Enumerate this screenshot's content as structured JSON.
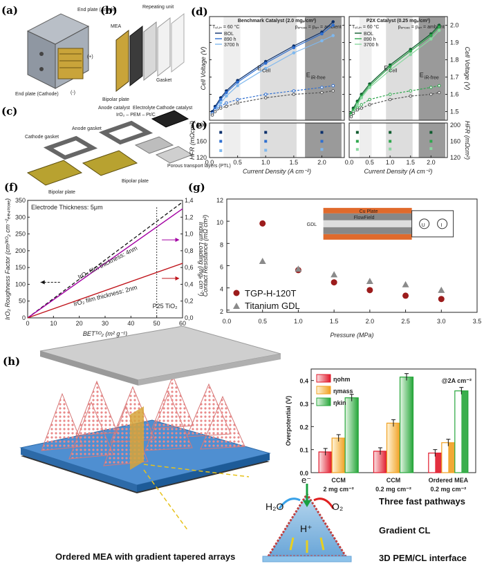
{
  "panels": {
    "a": "(a)",
    "b": "(b)",
    "c": "(c)",
    "d": "(d)",
    "e": "(e)",
    "f": "(f)",
    "g": "(g)",
    "h": "(h)"
  },
  "panel_a": {
    "end_plate_anode": "End plate (Anode)",
    "end_plate_cathode": "End plate (Cathode)",
    "plus": "(+)",
    "minus": "(-)"
  },
  "panel_b": {
    "repeating_unit": "Repeating unit",
    "mea": "MEA",
    "gasket": "Gasket",
    "bipolar_plate": "Bipolar plate"
  },
  "panel_c": {
    "anode_catalyst": "Anode catalyst",
    "electrolyte": "Electrolyte",
    "cathode_catalyst": "Cathode catalyst",
    "stack_formula": "IrO₂ – PEM – Pt/C",
    "anode_gasket": "Anode gasket",
    "cathode_gasket": "Cathode gasket",
    "ptl": "Porous transport layers (PTL)",
    "bipolar_plate_left": "Bipolar plate",
    "bipolar_plate_right": "Bipolar plate"
  },
  "panel_h": {
    "caption": "Ordered MEA with gradient tapered arrays",
    "electron": "e⁻",
    "water": "H₂O",
    "oxygen": "O₂",
    "proton": "H⁺",
    "pathways": "Three fast pathways",
    "gradient": "Gradient CL",
    "interface": "3D PEM/CL interface"
  },
  "chart_data": [
    {
      "id": "d_left",
      "type": "line",
      "title": "Benchmark Catalyst (2.0 mgᵢᵣ/cm²)",
      "subtitle_left": "Tₑₗ,ᵢₙ = 60 °C",
      "subtitle_right": "pₐₙₒₔₑ = pₐₙ = ambient",
      "ylabel": "Cell Voltage (V)",
      "ylim": [
        1.45,
        2.05
      ],
      "yticks": [
        1.5,
        1.6,
        1.7,
        1.8,
        1.9,
        2.0
      ],
      "xlim": [
        0,
        2.4
      ],
      "legend": [
        "BOL",
        "890 h",
        "3700 h"
      ],
      "annotations": [
        "E",
        "Cell",
        "E",
        "iR-free"
      ],
      "x": [
        0.05,
        0.1,
        0.2,
        0.3,
        0.5,
        1.0,
        1.5,
        2.0,
        2.2
      ],
      "series": [
        {
          "name": "BOL E_Cell",
          "values": [
            1.5,
            1.53,
            1.58,
            1.62,
            1.68,
            1.79,
            1.88,
            1.96,
            2.02
          ]
        },
        {
          "name": "890 h E_Cell",
          "values": [
            1.49,
            1.52,
            1.57,
            1.61,
            1.67,
            1.78,
            1.87,
            1.95,
            2.0
          ]
        },
        {
          "name": "3700 h E_Cell",
          "values": [
            1.48,
            1.51,
            1.55,
            1.59,
            1.65,
            1.75,
            1.84,
            1.91,
            1.94
          ]
        },
        {
          "name": "BOL E_iR-free",
          "values": [
            1.49,
            1.51,
            1.53,
            1.55,
            1.57,
            1.6,
            1.62,
            1.64,
            1.65
          ]
        },
        {
          "name": "3700 h E_iR-free",
          "values": [
            1.48,
            1.5,
            1.52,
            1.53,
            1.55,
            1.58,
            1.6,
            1.61,
            1.62
          ]
        }
      ]
    },
    {
      "id": "d_right",
      "type": "line",
      "title": "P2X Catalyst (0.25 mgᵢᵣ/cm²)",
      "subtitle_left": "Tₑₗ,ᵢₙ = 60 °C",
      "subtitle_right": "pₐₙₒₔₑ = pₐₙ = ambient",
      "ylabel": "Cell Voltage (V)",
      "ylim": [
        1.45,
        2.05
      ],
      "yticks": [
        1.5,
        1.6,
        1.7,
        1.8,
        1.9,
        2.0
      ],
      "xlim": [
        0,
        2.4
      ],
      "legend": [
        "BOL",
        "890 h",
        "3700 h"
      ],
      "annotations": [
        "E",
        "Cell",
        "E",
        "iR-free"
      ],
      "x": [
        0.05,
        0.1,
        0.2,
        0.3,
        0.5,
        1.0,
        1.5,
        2.0,
        2.2
      ],
      "series": [
        {
          "name": "BOL E_Cell",
          "values": [
            1.49,
            1.52,
            1.56,
            1.6,
            1.66,
            1.77,
            1.86,
            1.95,
            2.0
          ]
        },
        {
          "name": "890 h E_Cell",
          "values": [
            1.49,
            1.51,
            1.55,
            1.59,
            1.65,
            1.76,
            1.85,
            1.94,
            1.99
          ]
        },
        {
          "name": "3700 h E_Cell",
          "values": [
            1.48,
            1.5,
            1.54,
            1.58,
            1.64,
            1.74,
            1.83,
            1.92,
            1.97
          ]
        },
        {
          "name": "BOL E_iR-free",
          "values": [
            1.48,
            1.5,
            1.52,
            1.54,
            1.57,
            1.6,
            1.62,
            1.64,
            1.65
          ]
        },
        {
          "name": "3700 h E_iR-free",
          "values": [
            1.47,
            1.49,
            1.51,
            1.52,
            1.54,
            1.57,
            1.59,
            1.6,
            1.61
          ]
        }
      ]
    },
    {
      "id": "e_left",
      "type": "scatter",
      "ylabel": "HFR (mΩcm²)",
      "xlabel": "Current Density (A cm⁻²)",
      "ylim": [
        120,
        205
      ],
      "yticks": [
        120,
        160,
        200
      ],
      "xlim": [
        0,
        2.4
      ],
      "xticks": [
        0.0,
        0.5,
        1.0,
        1.5,
        2.0
      ],
      "x": [
        0.2,
        1.0,
        2.0
      ],
      "series": [
        {
          "name": "BOL",
          "values": [
            182,
            182,
            182
          ]
        },
        {
          "name": "890 h",
          "values": [
            160,
            160,
            160
          ]
        },
        {
          "name": "3700 h",
          "values": [
            137,
            138,
            140
          ]
        }
      ]
    },
    {
      "id": "e_right",
      "type": "scatter",
      "ylabel": "HFR (mΩcm²)",
      "xlabel": "Current Density (A cm⁻²)",
      "ylim": [
        120,
        205
      ],
      "yticks": [
        120,
        160,
        200
      ],
      "xlim": [
        0,
        2.4
      ],
      "xticks": [
        0.0,
        0.5,
        1.0,
        1.5,
        2.0
      ],
      "x": [
        0.2,
        1.0,
        2.0
      ],
      "series": [
        {
          "name": "BOL",
          "values": [
            182,
            182,
            182
          ]
        },
        {
          "name": "890 h",
          "values": [
            160,
            160,
            160
          ]
        },
        {
          "name": "3700 h",
          "values": [
            140,
            141,
            142
          ]
        }
      ]
    },
    {
      "id": "f",
      "type": "line",
      "title": "Electrode Thickness: 5μm",
      "xlabel": "BETᵀᶦᴼ₂ (m² g⁻¹)",
      "ylabel": "IrO₂ Roughness Factor (cm²ᴵʳᴼ₂ cm⁻²ₑₗₑ₄ₜᵣₒₔₑ)",
      "ylabel2": "Iridium Loading (mgᵢᵣ cm⁻²)",
      "xlim": [
        0,
        60
      ],
      "ylim": [
        0,
        350
      ],
      "ylim2": [
        0,
        1.4
      ],
      "xticks": [
        0,
        10,
        20,
        30,
        40,
        50,
        60
      ],
      "yticks": [
        0,
        50,
        100,
        150,
        200,
        250,
        300,
        350
      ],
      "yticks2": [
        0.0,
        0.2,
        0.4,
        0.6,
        0.8,
        1.0,
        1.2,
        1.4
      ],
      "annotation_marker": "P25 TiO₂",
      "series": [
        {
          "name": "Roughness factor",
          "x": [
            0,
            60
          ],
          "values": [
            0,
            345
          ]
        },
        {
          "name": "IrO₂ film thickness: 4nm",
          "x": [
            0,
            60
          ],
          "values": [
            0,
            1.3
          ]
        },
        {
          "name": "IrO₂ film thickness: 2nm",
          "x": [
            0,
            60
          ],
          "values": [
            0,
            0.65
          ]
        }
      ]
    },
    {
      "id": "g",
      "type": "scatter",
      "xlabel": "Pressure (MPa)",
      "ylabel": "Contact Resistance (mΩ cm²)",
      "xlim": [
        0,
        3.5
      ],
      "ylim": [
        1.8,
        12
      ],
      "xticks": [
        0.0,
        0.5,
        1.0,
        1.5,
        2.0,
        2.5,
        3.0,
        3.5
      ],
      "yticks": [
        2,
        4,
        6,
        8,
        10,
        12
      ],
      "x": [
        0.5,
        1.0,
        1.5,
        2.0,
        2.5,
        3.0
      ],
      "inset_labels": [
        "Cu Plate",
        "FlowField",
        "GDL",
        "U",
        "I"
      ],
      "series": [
        {
          "name": "TGP-H-120T",
          "values": [
            9.8,
            5.6,
            4.5,
            3.8,
            3.3,
            3.0
          ]
        },
        {
          "name": "Titanium GDL",
          "values": [
            6.4,
            5.7,
            5.2,
            4.6,
            4.3,
            3.8
          ]
        }
      ]
    },
    {
      "id": "h_bar",
      "type": "bar",
      "title": "@2A cm⁻²",
      "ylabel": "Overpotential (V)",
      "ylim": [
        0,
        0.45
      ],
      "yticks": [
        0.0,
        0.1,
        0.2,
        0.3,
        0.4
      ],
      "categories": [
        "CCM 2 mg cm⁻²",
        "CCM 0.2 mg cm⁻²",
        "Ordered MEA 0.2 mg cm⁻²"
      ],
      "series": [
        {
          "name": "ηohm",
          "values": [
            0.09,
            0.093,
            0.085
          ]
        },
        {
          "name": "ηmass",
          "values": [
            0.15,
            0.215,
            0.13
          ]
        },
        {
          "name": "ηkin",
          "values": [
            0.325,
            0.415,
            0.355
          ]
        }
      ],
      "colors": [
        "#e0182a",
        "#f0a020",
        "#26a63a"
      ]
    }
  ],
  "colors": {
    "bol": "#0a2f6b",
    "h890": "#2f6fd0",
    "h3700": "#7fb8ee",
    "green_bol": "#0f5a2e",
    "green_890": "#2ea64c",
    "green_3700": "#8ad7a0",
    "dashed": "#222222",
    "purple": "#a300a3",
    "red": "#c0161d",
    "dot_red": "#9c1c1c",
    "tri_gray": "#8a8a8a"
  }
}
